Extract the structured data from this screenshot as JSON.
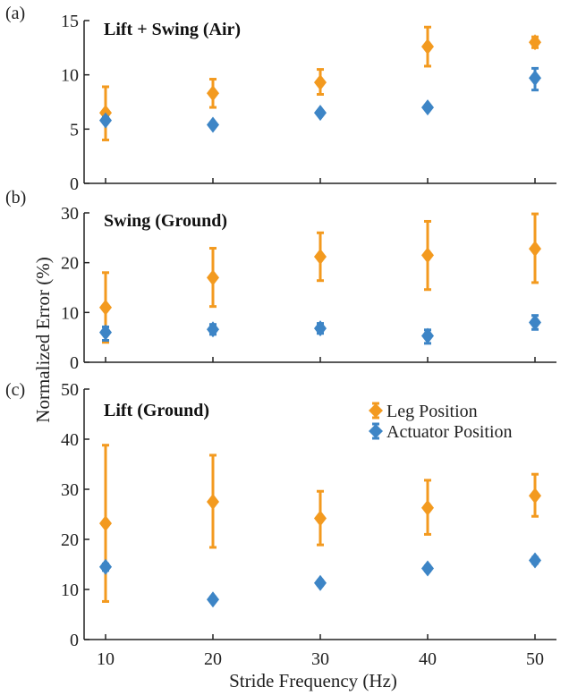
{
  "figure": {
    "xlabel": "Stride Frequency (Hz)",
    "ylabel": "Normalized Error (%)"
  },
  "legend": {
    "items": [
      {
        "label": "Leg Position",
        "color": "#f39a1f",
        "marker": "diamond"
      },
      {
        "label": "Actuator Position",
        "color": "#3d85c6",
        "marker": "diamond"
      }
    ]
  },
  "chart_data": [
    {
      "type": "scatter",
      "panel": "(a)",
      "title": "Lift + Swing (Air)",
      "x": [
        10,
        20,
        30,
        40,
        50
      ],
      "xticks": [
        "10",
        "20",
        "30",
        "40",
        "50"
      ],
      "xlim": [
        8,
        52
      ],
      "ylim": [
        0,
        15
      ],
      "yticks": [
        "0",
        "5",
        "10",
        "15"
      ],
      "series": [
        {
          "name": "Leg Position",
          "color": "#f39a1f",
          "values": [
            6.5,
            8.3,
            9.3,
            12.6,
            13.0
          ],
          "err_low": [
            4.0,
            7.0,
            8.2,
            10.8,
            12.5
          ],
          "err_high": [
            8.9,
            9.6,
            10.5,
            14.4,
            13.5
          ]
        },
        {
          "name": "Actuator Position",
          "color": "#3d85c6",
          "values": [
            5.8,
            5.4,
            6.5,
            7.0,
            9.7
          ],
          "err_low": [
            5.6,
            5.2,
            6.3,
            6.8,
            8.6
          ],
          "err_high": [
            6.1,
            5.6,
            6.7,
            7.2,
            10.6
          ]
        }
      ]
    },
    {
      "type": "scatter",
      "panel": "(b)",
      "title": "Swing (Ground)",
      "x": [
        10,
        20,
        30,
        40,
        50
      ],
      "xticks": [
        "10",
        "20",
        "30",
        "40",
        "50"
      ],
      "xlim": [
        8,
        52
      ],
      "ylim": [
        0,
        30
      ],
      "yticks": [
        "0",
        "10",
        "20",
        "30"
      ],
      "series": [
        {
          "name": "Leg Position",
          "color": "#f39a1f",
          "values": [
            11.0,
            17.0,
            21.2,
            21.5,
            22.8
          ],
          "err_low": [
            4.0,
            11.2,
            16.4,
            14.6,
            16.0
          ],
          "err_high": [
            18.0,
            22.9,
            26.0,
            28.3,
            29.8
          ]
        },
        {
          "name": "Actuator Position",
          "color": "#3d85c6",
          "values": [
            6.0,
            6.6,
            6.8,
            5.3,
            8.0
          ],
          "err_low": [
            4.4,
            5.6,
            5.8,
            3.8,
            6.6
          ],
          "err_high": [
            7.1,
            7.6,
            7.8,
            6.5,
            9.4
          ]
        }
      ]
    },
    {
      "type": "scatter",
      "panel": "(c)",
      "title": "Lift (Ground)",
      "x": [
        10,
        20,
        30,
        40,
        50
      ],
      "xticks": [
        "10",
        "20",
        "30",
        "40",
        "50"
      ],
      "xlim": [
        8,
        52
      ],
      "ylim": [
        0,
        50
      ],
      "yticks": [
        "0",
        "10",
        "20",
        "30",
        "40",
        "50"
      ],
      "series": [
        {
          "name": "Leg Position",
          "color": "#f39a1f",
          "values": [
            23.2,
            27.5,
            24.2,
            26.3,
            28.7
          ],
          "err_low": [
            7.6,
            18.4,
            18.9,
            21.0,
            24.6
          ],
          "err_high": [
            38.8,
            36.8,
            29.6,
            31.8,
            33.0
          ]
        },
        {
          "name": "Actuator Position",
          "color": "#3d85c6",
          "values": [
            14.5,
            8.0,
            11.3,
            14.2,
            15.8
          ],
          "err_low": [
            13.8,
            7.6,
            10.8,
            13.7,
            15.2
          ],
          "err_high": [
            15.1,
            8.5,
            11.8,
            14.7,
            16.4
          ]
        }
      ]
    }
  ]
}
